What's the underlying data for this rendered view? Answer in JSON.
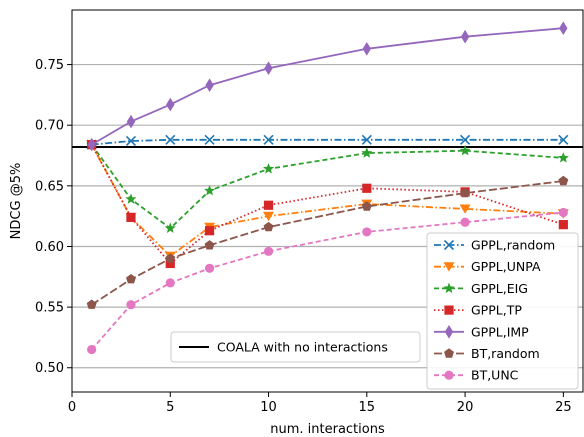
{
  "chart_data": {
    "type": "line",
    "title": "",
    "xlabel": "num. interactions",
    "ylabel": "NDCG @5%",
    "xlim": [
      0,
      26
    ],
    "ylim": [
      0.48,
      0.795
    ],
    "x_ticks": [
      0,
      5,
      10,
      15,
      20,
      25
    ],
    "x_tick_labels": [
      "0",
      "5",
      "10",
      "15",
      "20",
      "25"
    ],
    "y_ticks": [
      0.5,
      0.55,
      0.6,
      0.65,
      0.7,
      0.75
    ],
    "y_tick_labels": [
      "0.50",
      "0.55",
      "0.60",
      "0.65",
      "0.70",
      "0.75"
    ],
    "grid": "horizontal",
    "x": [
      1,
      3,
      5,
      7,
      10,
      15,
      20,
      25
    ],
    "series": [
      {
        "name": "GPPL,random",
        "color": "#1f77b4",
        "marker": "x",
        "dash": "dashdot",
        "values": [
          0.684,
          0.687,
          0.688,
          0.688,
          0.688,
          0.688,
          0.688,
          0.688
        ]
      },
      {
        "name": "GPPL,UNPA",
        "color": "#ff7f0e",
        "marker": "triangle-down",
        "dash": "dashdot",
        "values": [
          0.684,
          0.624,
          0.592,
          0.616,
          0.625,
          0.635,
          0.631,
          0.627
        ]
      },
      {
        "name": "GPPL,EIG",
        "color": "#2ca02c",
        "marker": "star",
        "dash": "dashed",
        "values": [
          0.684,
          0.639,
          0.615,
          0.646,
          0.664,
          0.677,
          0.679,
          0.673
        ]
      },
      {
        "name": "GPPL,TP",
        "color": "#d62728",
        "marker": "square",
        "dash": "dotted",
        "values": [
          0.684,
          0.624,
          0.586,
          0.613,
          0.634,
          0.648,
          0.645,
          0.618
        ]
      },
      {
        "name": "GPPL,IMP",
        "color": "#9467bd",
        "marker": "diamond",
        "dash": "solid",
        "values": [
          0.684,
          0.703,
          0.717,
          0.733,
          0.747,
          0.763,
          0.773,
          0.78
        ]
      },
      {
        "name": "BT,random",
        "color": "#8c564b",
        "marker": "pentagon",
        "dash": "longdash",
        "values": [
          0.552,
          0.573,
          0.59,
          0.601,
          0.616,
          0.633,
          0.644,
          0.654
        ]
      },
      {
        "name": "BT,UNC",
        "color": "#e377c2",
        "marker": "circle",
        "dash": "dashed",
        "values": [
          0.515,
          0.552,
          0.57,
          0.582,
          0.596,
          0.612,
          0.62,
          0.628
        ]
      }
    ],
    "reference_line": {
      "name": "COALA with no interactions",
      "value": 0.682,
      "color": "#000000"
    },
    "legend_placement": "lower-right"
  }
}
